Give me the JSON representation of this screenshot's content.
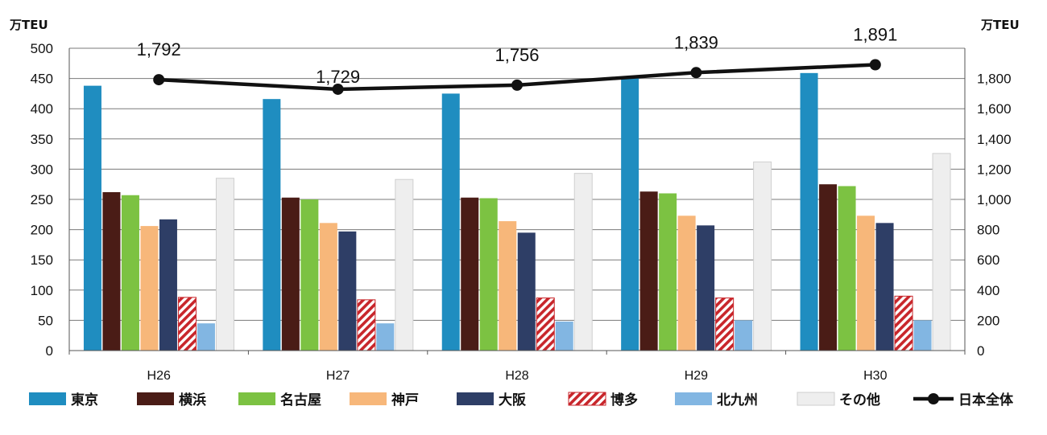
{
  "chart_data": {
    "type": "bar",
    "categories": [
      "H26",
      "H27",
      "H28",
      "H29",
      "H30"
    ],
    "series": [
      {
        "name": "東京",
        "color": "#1f8dc0",
        "pattern": "solid",
        "values": [
          438,
          416,
          425,
          451,
          459
        ]
      },
      {
        "name": "横浜",
        "color": "#4a1c16",
        "pattern": "solid",
        "values": [
          262,
          253,
          253,
          263,
          275
        ]
      },
      {
        "name": "名古屋",
        "color": "#7cc242",
        "pattern": "solid",
        "values": [
          257,
          250,
          252,
          260,
          272
        ]
      },
      {
        "name": "神戸",
        "color": "#f7b77a",
        "pattern": "solid",
        "values": [
          206,
          211,
          214,
          223,
          223
        ]
      },
      {
        "name": "大阪",
        "color": "#2e3e66",
        "pattern": "solid",
        "values": [
          217,
          197,
          195,
          207,
          211
        ]
      },
      {
        "name": "博多",
        "color": "#c8262b",
        "pattern": "hatch",
        "values": [
          88,
          84,
          87,
          87,
          90
        ]
      },
      {
        "name": "北九州",
        "color": "#82b6e2",
        "pattern": "solid",
        "values": [
          45,
          45,
          48,
          50,
          50
        ]
      },
      {
        "name": "その他",
        "color": "#eeeeee",
        "pattern": "solid",
        "values": [
          285,
          283,
          293,
          312,
          326
        ]
      }
    ],
    "line_series": {
      "name": "日本全体",
      "color": "#111111",
      "axis": "right",
      "values": [
        1792,
        1729,
        1756,
        1839,
        1891
      ],
      "labels": [
        "1,792",
        "1,729",
        "1,756",
        "1,839",
        "1,891"
      ]
    },
    "left_axis": {
      "unit_label": "万TEU",
      "min": 0,
      "max": 500,
      "step": 50,
      "tick_labels": [
        "0",
        "50",
        "100",
        "150",
        "200",
        "250",
        "300",
        "350",
        "400",
        "450",
        "500"
      ]
    },
    "right_axis": {
      "unit_label": "万TEU",
      "min": 0,
      "max": 2000,
      "step": 200,
      "tick_labels": [
        "0",
        "200",
        "400",
        "600",
        "800",
        "1,000",
        "1,200",
        "1,400",
        "1,600",
        "1,800"
      ]
    },
    "grid": true,
    "legend_position": "bottom"
  }
}
